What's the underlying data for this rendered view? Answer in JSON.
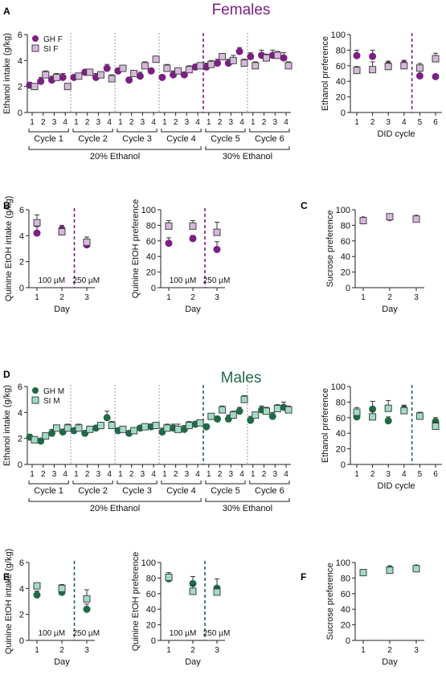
{
  "figure": {
    "section_titles": [
      {
        "label": "Females",
        "color": "#7b1e85"
      },
      {
        "label": "Males",
        "color": "#1f6b45"
      }
    ],
    "panel_letters": [
      "A",
      "B",
      "C",
      "D",
      "E",
      "F"
    ]
  },
  "colors": {
    "female_gh": "#7b1e85",
    "female_si": "#d7b8dc",
    "male_gh": "#1f6b45",
    "male_si": "#9fdcc9",
    "divider_grey": "#9a9a9a",
    "axis": "#222222"
  },
  "chart_data": [
    {
      "id": "A_intake",
      "type": "scatter",
      "panel": "A",
      "ylabel": "Ethanol intake (g/kg)",
      "ylim": [
        0,
        6
      ],
      "yticks": [
        0,
        2,
        4,
        6
      ],
      "x_tick_labels": [
        "1",
        "2",
        "3",
        "4",
        "1",
        "2",
        "3",
        "4",
        "1",
        "2",
        "3",
        "4",
        "1",
        "2",
        "3",
        "4",
        "1",
        "2",
        "3",
        "4",
        "1",
        "2",
        "3",
        "4"
      ],
      "x": [
        1,
        2,
        3,
        4,
        5,
        6,
        7,
        8,
        9,
        10,
        11,
        12,
        13,
        14,
        15,
        16,
        17,
        18,
        19,
        20,
        21,
        22,
        23,
        24
      ],
      "groups": [
        {
          "label": "Cycle 1",
          "from": 1,
          "to": 4
        },
        {
          "label": "Cycle 2",
          "from": 5,
          "to": 8
        },
        {
          "label": "Cycle 3",
          "from": 9,
          "to": 12
        },
        {
          "label": "Cycle 4",
          "from": 13,
          "to": 16
        },
        {
          "label": "Cycle 5",
          "from": 17,
          "to": 20
        },
        {
          "label": "Cycle 6",
          "from": 21,
          "to": 24
        }
      ],
      "supergroups": [
        {
          "label": "20% Ethanol",
          "from": 1,
          "to": 16
        },
        {
          "label": "30% Ethanol",
          "from": 17,
          "to": 24
        }
      ],
      "dividers": [
        {
          "after": 4,
          "style": "grey"
        },
        {
          "after": 8,
          "style": "grey"
        },
        {
          "after": 12,
          "style": "grey"
        },
        {
          "after": 16,
          "style": "accent"
        },
        {
          "after": 20,
          "style": "grey"
        }
      ],
      "legend": {
        "position": "top-left"
      },
      "series": [
        {
          "name": "GH F",
          "marker": "circle",
          "color_key": "female_gh",
          "values": [
            2.1,
            2.4,
            2.5,
            2.7,
            2.7,
            3.1,
            2.7,
            3.4,
            3.2,
            2.5,
            2.8,
            3.2,
            2.7,
            2.9,
            2.9,
            3.5,
            3.5,
            3.8,
            3.8,
            4.7,
            4.3,
            4.4,
            4.4,
            4.2
          ],
          "errors": [
            0.2,
            0.3,
            0.3,
            0.3,
            0.2,
            0.2,
            0.3,
            0.3,
            0.2,
            0.2,
            0.3,
            0.2,
            0.2,
            0.3,
            0.2,
            0.2,
            0.3,
            0.3,
            0.3,
            0.3,
            0.3,
            0.4,
            0.4,
            0.4
          ]
        },
        {
          "name": "SI F",
          "marker": "square",
          "color_key": "female_si",
          "values": [
            2.0,
            2.9,
            2.7,
            2.0,
            2.8,
            3.1,
            2.9,
            2.6,
            3.4,
            3.0,
            3.6,
            4.1,
            3.4,
            3.2,
            3.3,
            3.6,
            3.7,
            4.3,
            4.0,
            3.8,
            3.6,
            4.2,
            4.4,
            3.6
          ]
        },
        {
          "name": "",
          "marker": "none",
          "color_key": "female_si",
          "values": []
        }
      ],
      "si_errors": [
        0.2,
        0.3,
        0.3,
        0.2,
        0.2,
        0.2,
        0.2,
        0.3,
        0.2,
        0.2,
        0.3,
        0.2,
        0.3,
        0.2,
        0.3,
        0.2,
        0.3,
        0.2,
        0.4,
        0.3,
        0.3,
        0.3,
        0.3,
        0.3
      ]
    },
    {
      "id": "A_pref",
      "type": "scatter",
      "panel": "A",
      "xlabel": "DID cycle",
      "ylabel": "Ethanol preference",
      "ylim": [
        0,
        100
      ],
      "yticks": [
        0,
        20,
        40,
        60,
        80,
        100
      ],
      "x": [
        1,
        2,
        3,
        4,
        5,
        6
      ],
      "x_tick_labels": [
        "1",
        "2",
        "3",
        "4",
        "5",
        "6"
      ],
      "dividers": [
        {
          "after": 4,
          "style": "accent"
        }
      ],
      "series": [
        {
          "name": "GH F",
          "marker": "circle",
          "color_key": "female_gh",
          "values": [
            73,
            72,
            61,
            62,
            47,
            46
          ],
          "errors": [
            7,
            8,
            5,
            5,
            6,
            3
          ]
        },
        {
          "name": "SI F",
          "marker": "square",
          "color_key": "female_si",
          "values": [
            54,
            55,
            59,
            60,
            57,
            69
          ],
          "errors": [
            5,
            10,
            5,
            4,
            6,
            7
          ]
        }
      ]
    },
    {
      "id": "B_intake",
      "type": "scatter",
      "panel": "B",
      "xlabel": "Day",
      "ylabel": "Quinine EtOH intake (g/kg)",
      "ylim": [
        0,
        6
      ],
      "yticks": [
        0,
        2,
        4,
        6
      ],
      "x": [
        1,
        2,
        3
      ],
      "x_tick_labels": [
        "1",
        "2",
        "3"
      ],
      "dividers": [
        {
          "after": 2,
          "style": "accent"
        }
      ],
      "annotations": [
        "100 µM",
        "250 µM"
      ],
      "series": [
        {
          "name": "GH F",
          "marker": "circle",
          "color_key": "female_gh",
          "values": [
            4.2,
            4.5,
            3.3
          ],
          "errors": [
            0.5,
            0.3,
            0.3
          ]
        },
        {
          "name": "SI F",
          "marker": "square",
          "color_key": "female_si",
          "values": [
            5.0,
            4.3,
            3.5
          ],
          "errors": [
            0.6,
            0.3,
            0.4
          ]
        }
      ]
    },
    {
      "id": "B_pref",
      "type": "scatter",
      "panel": "B",
      "xlabel": "Day",
      "ylabel": "Quinine EtOH preference",
      "ylim": [
        0,
        100
      ],
      "yticks": [
        0,
        20,
        40,
        60,
        80,
        100
      ],
      "x": [
        1,
        2,
        3
      ],
      "x_tick_labels": [
        "1",
        "2",
        "3"
      ],
      "dividers": [
        {
          "after": 2,
          "style": "accent"
        }
      ],
      "annotations": [
        "100 µM",
        "250 µM"
      ],
      "series": [
        {
          "name": "GH F",
          "marker": "circle",
          "color_key": "female_gh",
          "values": [
            57,
            63,
            49
          ],
          "errors": [
            7,
            4,
            10
          ]
        },
        {
          "name": "SI F",
          "marker": "square",
          "color_key": "female_si",
          "values": [
            79,
            79,
            71
          ],
          "errors": [
            7,
            7,
            13
          ]
        }
      ]
    },
    {
      "id": "C_sucrose",
      "type": "scatter",
      "panel": "C",
      "xlabel": "Day",
      "ylabel": "Sucrose preference",
      "ylim": [
        0,
        100
      ],
      "yticks": [
        0,
        20,
        40,
        60,
        80,
        100
      ],
      "x": [
        1,
        2,
        3
      ],
      "x_tick_labels": [
        "1",
        "2",
        "3"
      ],
      "series": [
        {
          "name": "GH F",
          "marker": "circle",
          "color_key": "female_gh",
          "values": [
            87,
            90,
            89
          ],
          "errors": [
            2,
            1,
            2
          ]
        },
        {
          "name": "SI F",
          "marker": "square",
          "color_key": "female_si",
          "values": [
            86,
            91,
            88
          ],
          "errors": [
            2,
            1,
            2
          ]
        }
      ]
    },
    {
      "id": "D_intake",
      "type": "scatter",
      "panel": "D",
      "ylabel": "Ethanol intake (g/kg)",
      "ylim": [
        0,
        6
      ],
      "yticks": [
        0,
        2,
        4,
        6
      ],
      "x_tick_labels": [
        "1",
        "2",
        "3",
        "4",
        "1",
        "2",
        "3",
        "4",
        "1",
        "2",
        "3",
        "4",
        "1",
        "2",
        "3",
        "4",
        "1",
        "2",
        "3",
        "4",
        "1",
        "2",
        "3",
        "4"
      ],
      "x": [
        1,
        2,
        3,
        4,
        5,
        6,
        7,
        8,
        9,
        10,
        11,
        12,
        13,
        14,
        15,
        16,
        17,
        18,
        19,
        20,
        21,
        22,
        23,
        24
      ],
      "groups": [
        {
          "label": "Cycle 1",
          "from": 1,
          "to": 4
        },
        {
          "label": "Cycle 2",
          "from": 5,
          "to": 8
        },
        {
          "label": "Cycle 3",
          "from": 9,
          "to": 12
        },
        {
          "label": "Cycle 4",
          "from": 13,
          "to": 16
        },
        {
          "label": "Cycle 5",
          "from": 17,
          "to": 20
        },
        {
          "label": "Cycle 6",
          "from": 21,
          "to": 24
        }
      ],
      "supergroups": [
        {
          "label": "20% Ethanol",
          "from": 1,
          "to": 16
        },
        {
          "label": "30% Ethanol",
          "from": 17,
          "to": 24
        }
      ],
      "dividers": [
        {
          "after": 4,
          "style": "grey"
        },
        {
          "after": 8,
          "style": "grey"
        },
        {
          "after": 12,
          "style": "grey"
        },
        {
          "after": 16,
          "style": "accent"
        },
        {
          "after": 20,
          "style": "grey"
        }
      ],
      "legend": {
        "position": "top-left"
      },
      "series": [
        {
          "name": "GH M",
          "marker": "circle",
          "color_key": "male_gh",
          "values": [
            2.1,
            1.8,
            2.4,
            2.5,
            2.6,
            2.4,
            2.8,
            3.6,
            2.6,
            2.4,
            2.8,
            2.9,
            2.5,
            2.8,
            2.7,
            3.1,
            2.9,
            3.5,
            3.5,
            4.1,
            3.4,
            4.2,
            3.7,
            4.4
          ],
          "errors": [
            0.2,
            0.2,
            0.3,
            0.2,
            0.2,
            0.2,
            0.2,
            0.5,
            0.2,
            0.2,
            0.2,
            0.2,
            0.3,
            0.3,
            0.3,
            0.2,
            0.2,
            0.2,
            0.3,
            0.3,
            0.3,
            0.3,
            0.3,
            0.4
          ]
        },
        {
          "name": "SI M",
          "marker": "square",
          "color_key": "male_si",
          "values": [
            1.9,
            2.2,
            2.8,
            2.8,
            2.8,
            2.7,
            3.0,
            3.0,
            2.7,
            2.6,
            2.9,
            3.0,
            2.8,
            2.7,
            3.0,
            3.2,
            3.7,
            4.2,
            3.8,
            5.0,
            3.8,
            4.1,
            4.3,
            4.2
          ]
        },
        {
          "name": "",
          "marker": "none",
          "color_key": "male_si",
          "values": []
        }
      ],
      "si_errors": [
        0.2,
        0.2,
        0.2,
        0.3,
        0.3,
        0.2,
        0.2,
        0.3,
        0.2,
        0.2,
        0.2,
        0.2,
        0.3,
        0.4,
        0.3,
        0.2,
        0.2,
        0.3,
        0.3,
        0.3,
        0.2,
        0.3,
        0.3,
        0.3
      ]
    },
    {
      "id": "D_pref",
      "type": "scatter",
      "panel": "D",
      "xlabel": "DID cycle",
      "ylabel": "Ethanol preference",
      "ylim": [
        0,
        100
      ],
      "yticks": [
        0,
        20,
        40,
        60,
        80,
        100
      ],
      "x": [
        1,
        2,
        3,
        4,
        5,
        6
      ],
      "x_tick_labels": [
        "1",
        "2",
        "3",
        "4",
        "5",
        "6"
      ],
      "dividers": [
        {
          "after": 4,
          "style": "accent"
        }
      ],
      "series": [
        {
          "name": "GH M",
          "marker": "circle",
          "color_key": "male_gh",
          "values": [
            61,
            71,
            56,
            71,
            62,
            55
          ],
          "errors": [
            5,
            10,
            5,
            5,
            5,
            5
          ]
        },
        {
          "name": "SI M",
          "marker": "square",
          "color_key": "male_si",
          "values": [
            67,
            61,
            72,
            69,
            62,
            49
          ],
          "errors": [
            6,
            7,
            10,
            6,
            5,
            5
          ]
        }
      ]
    },
    {
      "id": "E_intake",
      "type": "scatter",
      "panel": "E",
      "xlabel": "Day",
      "ylabel": "Quinine EtOH intake (g/kg)",
      "ylim": [
        0,
        6
      ],
      "yticks": [
        0,
        2,
        4,
        6
      ],
      "x": [
        1,
        2,
        3
      ],
      "x_tick_labels": [
        "1",
        "2",
        "3"
      ],
      "dividers": [
        {
          "after": 2,
          "style": "accent"
        }
      ],
      "annotations": [
        "100 µM",
        "250 µM"
      ],
      "series": [
        {
          "name": "GH M",
          "marker": "circle",
          "color_key": "male_gh",
          "values": [
            3.5,
            3.7,
            2.4
          ],
          "errors": [
            0.3,
            0.2,
            0.4
          ]
        },
        {
          "name": "SI M",
          "marker": "square",
          "color_key": "male_si",
          "values": [
            4.2,
            4.0,
            3.2
          ],
          "errors": [
            0.2,
            0.3,
            0.7
          ]
        }
      ]
    },
    {
      "id": "E_pref",
      "type": "scatter",
      "panel": "E",
      "xlabel": "Day",
      "ylabel": "Quinine EtOH preference",
      "ylim": [
        0,
        100
      ],
      "yticks": [
        0,
        20,
        40,
        60,
        80,
        100
      ],
      "x": [
        1,
        2,
        3
      ],
      "x_tick_labels": [
        "1",
        "2",
        "3"
      ],
      "dividers": [
        {
          "after": 2,
          "style": "accent"
        }
      ],
      "annotations": [
        "100 µM",
        "250 µM"
      ],
      "series": [
        {
          "name": "GH M",
          "marker": "circle",
          "color_key": "male_gh",
          "values": [
            79,
            73,
            67
          ],
          "errors": [
            6,
            9,
            12
          ]
        },
        {
          "name": "SI M",
          "marker": "square",
          "color_key": "male_si",
          "values": [
            81,
            63,
            62
          ],
          "errors": [
            6,
            8,
            6
          ]
        }
      ]
    },
    {
      "id": "F_sucrose",
      "type": "scatter",
      "panel": "F",
      "xlabel": "Day",
      "ylabel": "Sucrose preference",
      "ylim": [
        0,
        100
      ],
      "yticks": [
        0,
        20,
        40,
        60,
        80,
        100
      ],
      "x": [
        1,
        2,
        3
      ],
      "x_tick_labels": [
        "1",
        "2",
        "3"
      ],
      "series": [
        {
          "name": "GH M",
          "marker": "circle",
          "color_key": "male_gh",
          "values": [
            87,
            92,
            93
          ],
          "errors": [
            4,
            3,
            2
          ]
        },
        {
          "name": "SI M",
          "marker": "square",
          "color_key": "male_si",
          "values": [
            87,
            90,
            92
          ],
          "errors": [
            3,
            2,
            2
          ]
        }
      ]
    }
  ]
}
